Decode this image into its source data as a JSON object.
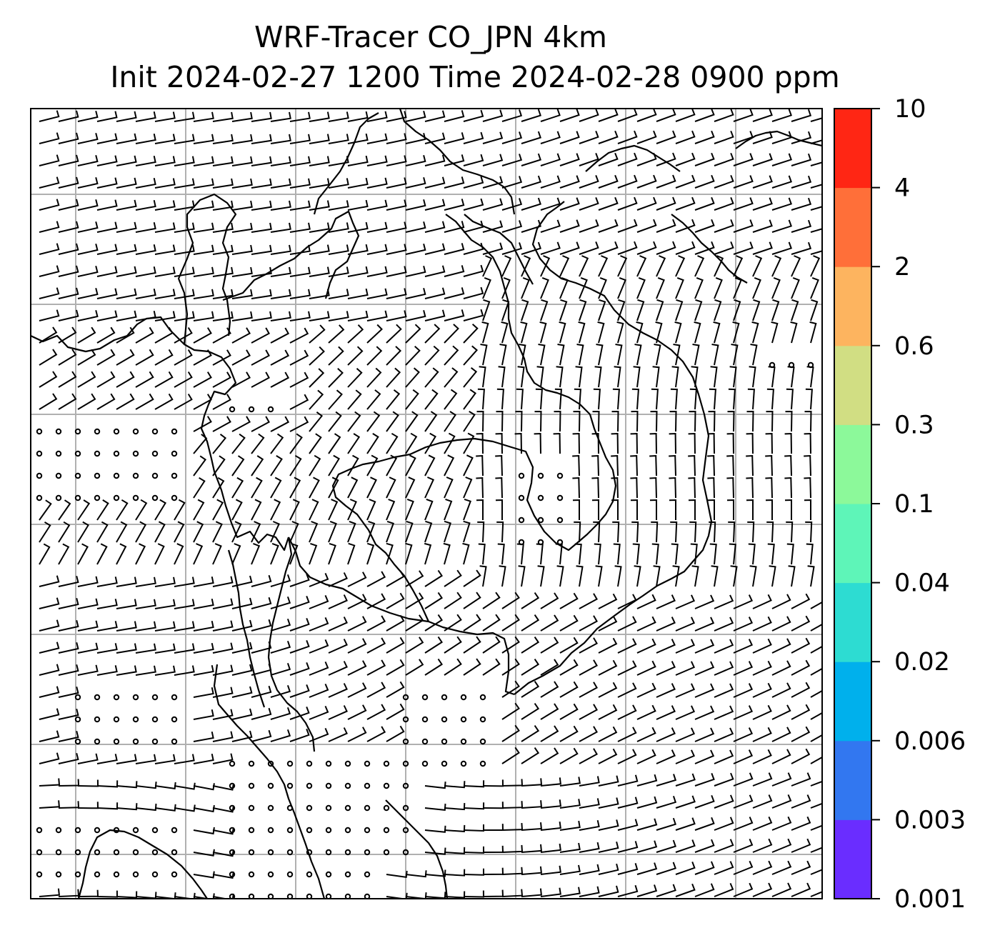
{
  "title_line1": "WRF-Tracer CO_JPN 4km",
  "title_line2": "Init 2024-02-27 1200 Time 2024-02-28 0900 ppm",
  "colorbar": {
    "levels": [
      "0.001",
      "0.003",
      "0.006",
      "0.02",
      "0.04",
      "0.1",
      "0.3",
      "0.6",
      "2",
      "4",
      "10"
    ],
    "colors": [
      "#6a2dff",
      "#3277f0",
      "#00b0ec",
      "#2ddcd2",
      "#5ef5b8",
      "#8cf99a",
      "#d1de83",
      "#fdb45f",
      "#ff6f39",
      "#ff2614"
    ]
  },
  "map": {
    "gridlines": "on",
    "coastlines": "black",
    "wind_barbs": "black",
    "gridline_color": "#b0b0b0"
  }
}
